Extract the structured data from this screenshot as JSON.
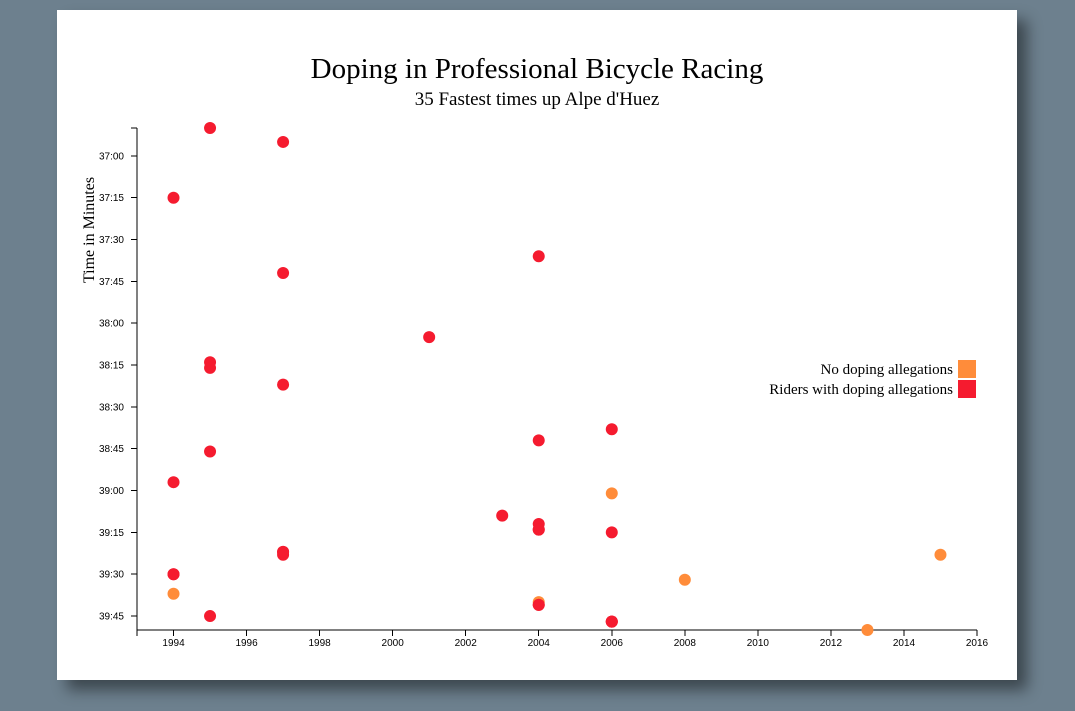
{
  "chart_data": {
    "type": "scatter",
    "title": "Doping in Professional Bicycle Racing",
    "subtitle": "35 Fastest times up Alpe d'Huez",
    "ylabel": "Time in Minutes",
    "xlabel": "",
    "xlim": [
      1993,
      2016
    ],
    "ylim_seconds": [
      2210,
      2390
    ],
    "x_ticks": [
      1994,
      1996,
      1998,
      2000,
      2002,
      2004,
      2006,
      2008,
      2010,
      2012,
      2014,
      2016
    ],
    "y_ticks": [
      {
        "label": "37:00",
        "seconds": 2220
      },
      {
        "label": "37:15",
        "seconds": 2235
      },
      {
        "label": "37:30",
        "seconds": 2250
      },
      {
        "label": "37:45",
        "seconds": 2265
      },
      {
        "label": "38:00",
        "seconds": 2280
      },
      {
        "label": "38:15",
        "seconds": 2295
      },
      {
        "label": "38:30",
        "seconds": 2310
      },
      {
        "label": "38:45",
        "seconds": 2325
      },
      {
        "label": "39:00",
        "seconds": 2340
      },
      {
        "label": "39:15",
        "seconds": 2355
      },
      {
        "label": "39:30",
        "seconds": 2370
      },
      {
        "label": "39:45",
        "seconds": 2385
      }
    ],
    "legend": {
      "placement": "right-middle",
      "items": [
        {
          "label": "No doping allegations",
          "color": "#ff8c3a"
        },
        {
          "label": "Riders with doping allegations",
          "color": "#f51b2f"
        }
      ]
    },
    "series": [
      {
        "name": "No doping allegations",
        "color": "#ff8c3a",
        "points": [
          {
            "year": 1994,
            "seconds": 2377
          },
          {
            "year": 2004,
            "seconds": 2380
          },
          {
            "year": 2006,
            "seconds": 2341
          },
          {
            "year": 2008,
            "seconds": 2372
          },
          {
            "year": 2013,
            "seconds": 2390
          },
          {
            "year": 2015,
            "seconds": 2363
          }
        ]
      },
      {
        "name": "Riders with doping allegations",
        "color": "#f51b2f",
        "points": [
          {
            "year": 1995,
            "seconds": 2210
          },
          {
            "year": 1997,
            "seconds": 2215
          },
          {
            "year": 1994,
            "seconds": 2235
          },
          {
            "year": 2004,
            "seconds": 2256
          },
          {
            "year": 1997,
            "seconds": 2262
          },
          {
            "year": 2001,
            "seconds": 2285
          },
          {
            "year": 1995,
            "seconds": 2294
          },
          {
            "year": 1995,
            "seconds": 2296
          },
          {
            "year": 1997,
            "seconds": 2302
          },
          {
            "year": 2006,
            "seconds": 2318
          },
          {
            "year": 2004,
            "seconds": 2322
          },
          {
            "year": 1995,
            "seconds": 2326
          },
          {
            "year": 1994,
            "seconds": 2337
          },
          {
            "year": 2003,
            "seconds": 2349
          },
          {
            "year": 2004,
            "seconds": 2352
          },
          {
            "year": 2004,
            "seconds": 2354
          },
          {
            "year": 2006,
            "seconds": 2355
          },
          {
            "year": 1997,
            "seconds": 2362
          },
          {
            "year": 1997,
            "seconds": 2363
          },
          {
            "year": 1994,
            "seconds": 2370
          },
          {
            "year": 1994,
            "seconds": 2370
          },
          {
            "year": 2004,
            "seconds": 2381
          },
          {
            "year": 2004,
            "seconds": 2381
          },
          {
            "year": 1995,
            "seconds": 2385
          },
          {
            "year": 2006,
            "seconds": 2387
          },
          {
            "year": 2006,
            "seconds": 2387
          },
          {
            "year": 2006,
            "seconds": 2387
          },
          {
            "year": 1997,
            "seconds": 2362
          },
          {
            "year": 2004,
            "seconds": 2354
          }
        ]
      }
    ]
  }
}
